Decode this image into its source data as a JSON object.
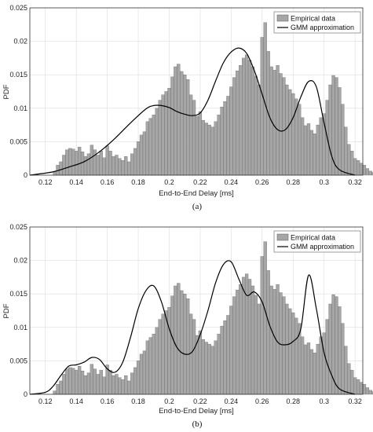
{
  "chart_data": [
    {
      "type": "bar",
      "panel_label": "(a)",
      "xlabel": "End-to-End Delay [ms]",
      "ylabel": "PDF",
      "xlim": [
        0.11,
        0.325
      ],
      "ylim": [
        0,
        0.025
      ],
      "xticks": [
        "0.12",
        "0.14",
        "0.16",
        "0.18",
        "0.2",
        "0.22",
        "0.24",
        "0.26",
        "0.28",
        "0.3",
        "0.32"
      ],
      "yticks": [
        "0",
        "0.005",
        "0.01",
        "0.015",
        "0.02",
        "0.025"
      ],
      "grid": true,
      "legend_position": "top-right",
      "series": [
        {
          "name": "Empirical data",
          "kind": "histogram",
          "bin_width": 0.002,
          "x_start": 0.125,
          "values": [
            0.0005,
            0.0015,
            0.002,
            0.003,
            0.0038,
            0.004,
            0.0039,
            0.0036,
            0.0042,
            0.0035,
            0.0028,
            0.0032,
            0.0045,
            0.0038,
            0.003,
            0.0036,
            0.0026,
            0.0044,
            0.0036,
            0.0028,
            0.003,
            0.0025,
            0.0022,
            0.0028,
            0.002,
            0.0032,
            0.004,
            0.005,
            0.006,
            0.0065,
            0.008,
            0.0085,
            0.009,
            0.01,
            0.0112,
            0.012,
            0.0125,
            0.013,
            0.0147,
            0.0162,
            0.0166,
            0.0155,
            0.015,
            0.0143,
            0.012,
            0.0112,
            0.0088,
            0.0095,
            0.0082,
            0.0078,
            0.0075,
            0.0072,
            0.008,
            0.009,
            0.0102,
            0.011,
            0.0118,
            0.0132,
            0.0146,
            0.0156,
            0.0164,
            0.0175,
            0.018,
            0.0172,
            0.0162,
            0.0148,
            0.0135,
            0.0206,
            0.0228,
            0.0185,
            0.0162,
            0.0157,
            0.0164,
            0.0152,
            0.0146,
            0.0135,
            0.0128,
            0.0122,
            0.0114,
            0.0106,
            0.0086,
            0.0074,
            0.0077,
            0.0067,
            0.0062,
            0.0075,
            0.0086,
            0.0092,
            0.0112,
            0.0135,
            0.0149,
            0.0146,
            0.0131,
            0.0106,
            0.0072,
            0.0046,
            0.0036,
            0.0025,
            0.0022,
            0.0018,
            0.0015,
            0.001,
            0.0006,
            0.0004,
            0.0002
          ]
        },
        {
          "name": "GMM approximation",
          "kind": "line",
          "x": [
            0.11,
            0.125,
            0.135,
            0.145,
            0.155,
            0.165,
            0.175,
            0.185,
            0.19,
            0.195,
            0.2,
            0.205,
            0.21,
            0.215,
            0.22,
            0.225,
            0.23,
            0.235,
            0.24,
            0.245,
            0.25,
            0.255,
            0.26,
            0.265,
            0.27,
            0.275,
            0.28,
            0.285,
            0.29,
            0.295,
            0.3,
            0.305,
            0.31,
            0.32
          ],
          "y": [
            0.0,
            0.0005,
            0.0012,
            0.002,
            0.0035,
            0.0055,
            0.0078,
            0.0099,
            0.0104,
            0.0104,
            0.0101,
            0.0095,
            0.0091,
            0.0089,
            0.0093,
            0.0112,
            0.0141,
            0.0168,
            0.0184,
            0.019,
            0.0182,
            0.0156,
            0.0121,
            0.0086,
            0.0068,
            0.0068,
            0.0086,
            0.0117,
            0.014,
            0.0132,
            0.0078,
            0.0028,
            0.0008,
            0.0
          ]
        }
      ]
    },
    {
      "type": "bar",
      "panel_label": "(b)",
      "xlabel": "End-to-End Delay [ms]",
      "ylabel": "PDF",
      "xlim": [
        0.11,
        0.325
      ],
      "ylim": [
        0,
        0.025
      ],
      "xticks": [
        "0.12",
        "0.14",
        "0.16",
        "0.18",
        "0.2",
        "0.22",
        "0.24",
        "0.26",
        "0.28",
        "0.3",
        "0.32"
      ],
      "yticks": [
        "0",
        "0.005",
        "0.01",
        "0.015",
        "0.02",
        "0.025"
      ],
      "grid": true,
      "legend_position": "top-right",
      "series": [
        {
          "name": "Empirical data",
          "kind": "histogram",
          "bin_width": 0.002,
          "x_start": 0.125,
          "values": [
            0.0005,
            0.0015,
            0.002,
            0.003,
            0.0038,
            0.004,
            0.0039,
            0.0036,
            0.0042,
            0.0035,
            0.0028,
            0.0032,
            0.0045,
            0.0038,
            0.003,
            0.0036,
            0.0026,
            0.0044,
            0.0036,
            0.0028,
            0.003,
            0.0025,
            0.0022,
            0.0028,
            0.002,
            0.0032,
            0.004,
            0.005,
            0.006,
            0.0065,
            0.008,
            0.0085,
            0.009,
            0.01,
            0.0112,
            0.012,
            0.0125,
            0.013,
            0.0147,
            0.0162,
            0.0166,
            0.0155,
            0.015,
            0.0143,
            0.012,
            0.0112,
            0.0088,
            0.0095,
            0.0082,
            0.0078,
            0.0075,
            0.0072,
            0.008,
            0.009,
            0.0102,
            0.011,
            0.0118,
            0.0132,
            0.0146,
            0.0156,
            0.0164,
            0.0175,
            0.018,
            0.0172,
            0.0162,
            0.0148,
            0.0135,
            0.0206,
            0.0228,
            0.0185,
            0.0162,
            0.0157,
            0.0164,
            0.0152,
            0.0146,
            0.0135,
            0.0128,
            0.0122,
            0.0114,
            0.0106,
            0.0086,
            0.0074,
            0.0077,
            0.0067,
            0.0062,
            0.0075,
            0.0086,
            0.0092,
            0.0112,
            0.0135,
            0.0149,
            0.0146,
            0.0131,
            0.0106,
            0.0072,
            0.0046,
            0.0036,
            0.0025,
            0.0022,
            0.0018,
            0.0015,
            0.001,
            0.0006,
            0.0004,
            0.0002
          ]
        },
        {
          "name": "GMM approximation",
          "kind": "line",
          "x": [
            0.11,
            0.12,
            0.125,
            0.13,
            0.135,
            0.14,
            0.145,
            0.15,
            0.155,
            0.16,
            0.165,
            0.17,
            0.175,
            0.18,
            0.185,
            0.19,
            0.195,
            0.2,
            0.205,
            0.21,
            0.215,
            0.22,
            0.225,
            0.23,
            0.235,
            0.24,
            0.245,
            0.25,
            0.255,
            0.26,
            0.265,
            0.27,
            0.275,
            0.28,
            0.285,
            0.29,
            0.295,
            0.3,
            0.305,
            0.31,
            0.32
          ],
          "y": [
            0.0,
            0.0003,
            0.0012,
            0.0028,
            0.0042,
            0.0044,
            0.0048,
            0.0055,
            0.0052,
            0.0038,
            0.0033,
            0.0048,
            0.0085,
            0.0128,
            0.0155,
            0.0162,
            0.0138,
            0.0098,
            0.007,
            0.006,
            0.0064,
            0.0089,
            0.0125,
            0.0167,
            0.0194,
            0.0198,
            0.0172,
            0.0148,
            0.0153,
            0.0138,
            0.0102,
            0.0078,
            0.0074,
            0.0079,
            0.0098,
            0.0178,
            0.0128,
            0.0062,
            0.0028,
            0.0008,
            0.0
          ]
        }
      ]
    }
  ]
}
